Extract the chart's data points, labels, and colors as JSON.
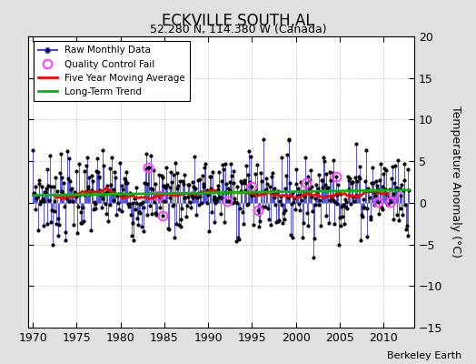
{
  "title": "ECKVILLE SOUTH,AL",
  "subtitle": "52.280 N, 114.380 W (Canada)",
  "ylabel": "Temperature Anomaly (°C)",
  "credit": "Berkeley Earth",
  "xlim": [
    1969.5,
    2013.5
  ],
  "ylim": [
    -15,
    20
  ],
  "yticks": [
    -15,
    -10,
    -5,
    0,
    5,
    10,
    15,
    20
  ],
  "xticks": [
    1970,
    1975,
    1980,
    1985,
    1990,
    1995,
    2000,
    2005,
    2010
  ],
  "bg_color": "#e0e0e0",
  "plot_bg_color": "#ffffff",
  "raw_line_color": "#4444dd",
  "raw_dot_color": "#000000",
  "moving_avg_color": "#ff0000",
  "trend_color": "#00bb00",
  "qc_fail_color": "#ff44ff",
  "trend_slope": 0.015,
  "trend_intercept": 0.9,
  "noise_scale": 3.2,
  "seed": 7
}
